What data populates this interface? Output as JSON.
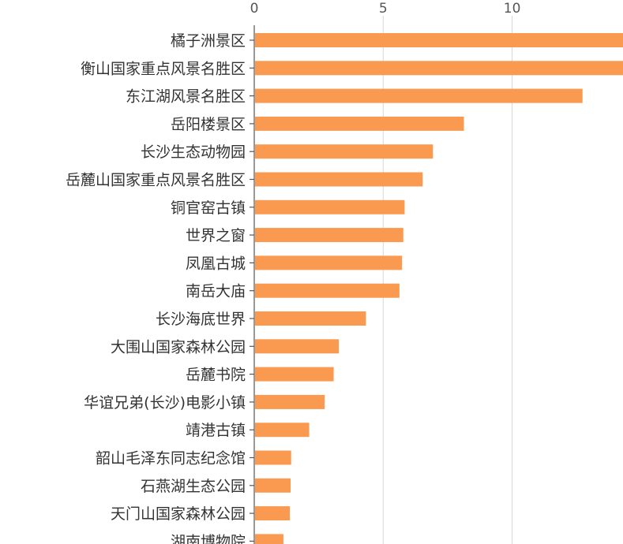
{
  "chart_data": {
    "type": "bar",
    "orientation": "horizontal",
    "title": "",
    "xlabel": "",
    "ylabel": "",
    "xlim": [
      0,
      14.3
    ],
    "x_ticks": [
      0,
      5,
      10
    ],
    "grid": true,
    "bar_color": "#fa9a50",
    "categories": [
      "橘子洲景区",
      "衡山国家重点风景名胜区",
      "东江湖风景名胜区",
      "岳阳楼景区",
      "长沙生态动物园",
      "岳麓山国家重点风景名胜区",
      "铜官窑古镇",
      "世界之窗",
      "凤凰古城",
      "南岳大庙",
      "长沙海底世界",
      "大围山国家森林公园",
      "岳麓书院",
      "华谊兄弟(长沙)电影小镇",
      "靖港古镇",
      "韶山毛泽东同志纪念馆",
      "石燕湖生态公园",
      "天门山国家森林公园",
      "湖南博物院"
    ],
    "values": [
      14.5,
      14.5,
      12.7,
      8.1,
      6.9,
      6.5,
      5.8,
      5.75,
      5.7,
      5.6,
      4.3,
      3.25,
      3.05,
      2.7,
      2.1,
      1.4,
      1.38,
      1.35,
      1.1
    ]
  }
}
